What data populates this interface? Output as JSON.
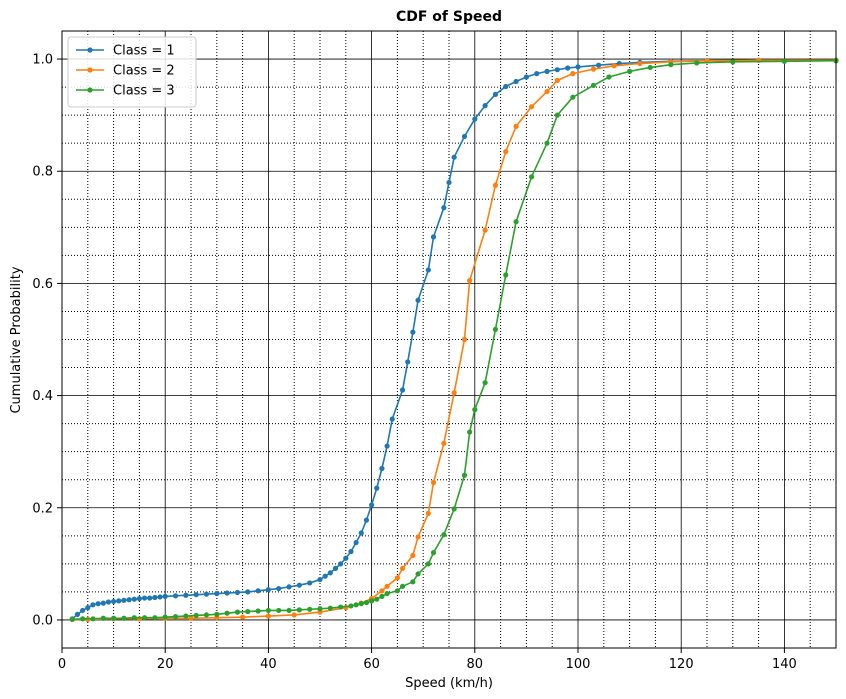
{
  "chart_data": {
    "type": "line",
    "title": "CDF of Speed",
    "xlabel": "Speed (km/h)",
    "ylabel": "Cumulative Probability",
    "xlim": [
      0,
      150
    ],
    "ylim": [
      -0.05,
      1.05
    ],
    "x_major_ticks": [
      0,
      20,
      40,
      60,
      80,
      100,
      120,
      140
    ],
    "x_tick_labels": [
      "0",
      "20",
      "40",
      "60",
      "80",
      "100",
      "120",
      "140"
    ],
    "y_major_ticks": [
      0.0,
      0.2,
      0.4,
      0.6,
      0.8,
      1.0
    ],
    "y_tick_labels": [
      "0.0",
      "0.2",
      "0.4",
      "0.6",
      "0.8",
      "1.0"
    ],
    "x_minor_step": 5,
    "y_minor_step": 0.05,
    "grid": true,
    "legend": "top-left",
    "series": [
      {
        "name": "Class = 1",
        "color": "#1f77b4",
        "points": [
          [
            2,
            0.002
          ],
          [
            3,
            0.01
          ],
          [
            4,
            0.017
          ],
          [
            5,
            0.022
          ],
          [
            6,
            0.027
          ],
          [
            7,
            0.029
          ],
          [
            8,
            0.03
          ],
          [
            9,
            0.032
          ],
          [
            10,
            0.033
          ],
          [
            11,
            0.034
          ],
          [
            12,
            0.035
          ],
          [
            13,
            0.036
          ],
          [
            14,
            0.037
          ],
          [
            15,
            0.038
          ],
          [
            16,
            0.039
          ],
          [
            17,
            0.039
          ],
          [
            18,
            0.04
          ],
          [
            19,
            0.041
          ],
          [
            20,
            0.042
          ],
          [
            22,
            0.043
          ],
          [
            24,
            0.044
          ],
          [
            26,
            0.045
          ],
          [
            28,
            0.046
          ],
          [
            30,
            0.047
          ],
          [
            32,
            0.048
          ],
          [
            34,
            0.049
          ],
          [
            36,
            0.05
          ],
          [
            38,
            0.052
          ],
          [
            40,
            0.054
          ],
          [
            42,
            0.056
          ],
          [
            44,
            0.059
          ],
          [
            46,
            0.062
          ],
          [
            48,
            0.066
          ],
          [
            50,
            0.072
          ],
          [
            51,
            0.078
          ],
          [
            52,
            0.084
          ],
          [
            53,
            0.092
          ],
          [
            54,
            0.1
          ],
          [
            55,
            0.11
          ],
          [
            56,
            0.122
          ],
          [
            57,
            0.138
          ],
          [
            58,
            0.155
          ],
          [
            59,
            0.178
          ],
          [
            60,
            0.205
          ],
          [
            61,
            0.235
          ],
          [
            62,
            0.27
          ],
          [
            63,
            0.31
          ],
          [
            64,
            0.358
          ],
          [
            66,
            0.41
          ],
          [
            67,
            0.46
          ],
          [
            68,
            0.513
          ],
          [
            69,
            0.57
          ],
          [
            71,
            0.624
          ],
          [
            72,
            0.683
          ],
          [
            74,
            0.735
          ],
          [
            75,
            0.78
          ],
          [
            76,
            0.825
          ],
          [
            78,
            0.862
          ],
          [
            80,
            0.893
          ],
          [
            82,
            0.917
          ],
          [
            84,
            0.937
          ],
          [
            86,
            0.951
          ],
          [
            88,
            0.96
          ],
          [
            90,
            0.968
          ],
          [
            92,
            0.974
          ],
          [
            94,
            0.978
          ],
          [
            96,
            0.981
          ],
          [
            98,
            0.984
          ],
          [
            100,
            0.986
          ],
          [
            104,
            0.989
          ],
          [
            108,
            0.992
          ],
          [
            112,
            0.994
          ],
          [
            118,
            0.996
          ],
          [
            125,
            0.997
          ],
          [
            135,
            0.998
          ],
          [
            150,
            0.998
          ]
        ]
      },
      {
        "name": "Class = 2",
        "color": "#ff7f0e",
        "points": [
          [
            2,
            0.001
          ],
          [
            5,
            0.001
          ],
          [
            10,
            0.002
          ],
          [
            15,
            0.002
          ],
          [
            20,
            0.003
          ],
          [
            25,
            0.003
          ],
          [
            30,
            0.004
          ],
          [
            35,
            0.005
          ],
          [
            40,
            0.007
          ],
          [
            45,
            0.009
          ],
          [
            50,
            0.014
          ],
          [
            55,
            0.022
          ],
          [
            58,
            0.03
          ],
          [
            60,
            0.038
          ],
          [
            62,
            0.052
          ],
          [
            63,
            0.06
          ],
          [
            65,
            0.075
          ],
          [
            66,
            0.092
          ],
          [
            68,
            0.115
          ],
          [
            69,
            0.148
          ],
          [
            71,
            0.19
          ],
          [
            72,
            0.245
          ],
          [
            74,
            0.315
          ],
          [
            76,
            0.405
          ],
          [
            78,
            0.5
          ],
          [
            79,
            0.605
          ],
          [
            82,
            0.695
          ],
          [
            84,
            0.775
          ],
          [
            86,
            0.835
          ],
          [
            88,
            0.88
          ],
          [
            91,
            0.915
          ],
          [
            94,
            0.942
          ],
          [
            96,
            0.962
          ],
          [
            99,
            0.974
          ],
          [
            103,
            0.982
          ],
          [
            107,
            0.988
          ],
          [
            112,
            0.992
          ],
          [
            118,
            0.995
          ],
          [
            125,
            0.997
          ],
          [
            135,
            0.998
          ],
          [
            150,
            0.998
          ]
        ]
      },
      {
        "name": "Class = 3",
        "color": "#2ca02c",
        "points": [
          [
            2,
            0.001
          ],
          [
            4,
            0.002
          ],
          [
            6,
            0.002
          ],
          [
            8,
            0.003
          ],
          [
            10,
            0.003
          ],
          [
            12,
            0.003
          ],
          [
            14,
            0.004
          ],
          [
            16,
            0.004
          ],
          [
            18,
            0.004
          ],
          [
            20,
            0.005
          ],
          [
            22,
            0.006
          ],
          [
            24,
            0.007
          ],
          [
            26,
            0.008
          ],
          [
            28,
            0.009
          ],
          [
            30,
            0.01
          ],
          [
            32,
            0.012
          ],
          [
            34,
            0.014
          ],
          [
            36,
            0.015
          ],
          [
            38,
            0.016
          ],
          [
            40,
            0.017
          ],
          [
            42,
            0.017
          ],
          [
            44,
            0.017
          ],
          [
            46,
            0.018
          ],
          [
            48,
            0.019
          ],
          [
            50,
            0.02
          ],
          [
            52,
            0.021
          ],
          [
            54,
            0.023
          ],
          [
            56,
            0.025
          ],
          [
            57,
            0.027
          ],
          [
            58,
            0.029
          ],
          [
            59,
            0.031
          ],
          [
            60,
            0.034
          ],
          [
            61,
            0.037
          ],
          [
            62,
            0.042
          ],
          [
            63,
            0.047
          ],
          [
            65,
            0.052
          ],
          [
            66,
            0.06
          ],
          [
            68,
            0.068
          ],
          [
            69,
            0.082
          ],
          [
            71,
            0.1
          ],
          [
            72,
            0.12
          ],
          [
            74,
            0.152
          ],
          [
            76,
            0.198
          ],
          [
            78,
            0.258
          ],
          [
            79,
            0.335
          ],
          [
            80,
            0.375
          ],
          [
            82,
            0.423
          ],
          [
            84,
            0.518
          ],
          [
            86,
            0.615
          ],
          [
            88,
            0.71
          ],
          [
            91,
            0.79
          ],
          [
            94,
            0.85
          ],
          [
            96,
            0.9
          ],
          [
            99,
            0.932
          ],
          [
            103,
            0.953
          ],
          [
            106,
            0.968
          ],
          [
            110,
            0.978
          ],
          [
            114,
            0.985
          ],
          [
            118,
            0.99
          ],
          [
            123,
            0.993
          ],
          [
            130,
            0.995
          ],
          [
            140,
            0.996
          ],
          [
            150,
            0.997
          ]
        ]
      }
    ]
  }
}
